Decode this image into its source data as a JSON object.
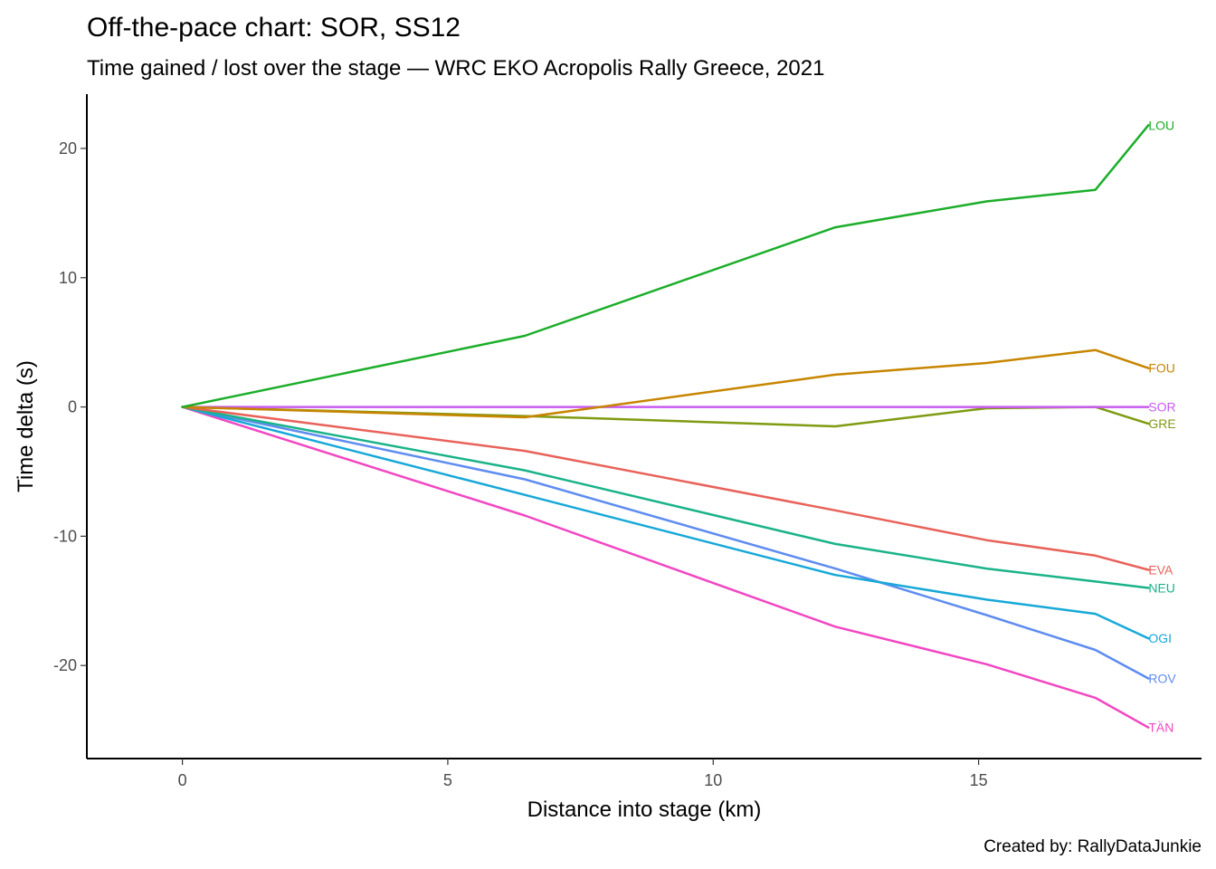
{
  "chart_data": {
    "type": "line",
    "title": "Off-the-pace chart: SOR, SS12",
    "subtitle": "Time gained / lost over the stage — WRC EKO Acropolis Rally Greece, 2021",
    "xlabel": "Distance into stage (km)",
    "ylabel": "Time delta (s)",
    "caption": "Created by: RallyDataJunkie",
    "xlim": [
      -1.8,
      19.2
    ],
    "ylim": [
      24.2,
      -27.2
    ],
    "y_reversed": true,
    "grid": false,
    "legend": "direct-labels",
    "x_ticks": [
      0,
      5,
      10,
      15
    ],
    "x_tick_labels": [
      "0",
      "5",
      "10",
      "15"
    ],
    "y_ticks": [
      -20,
      -10,
      0,
      10,
      20
    ],
    "y_tick_labels": [
      "-20",
      "-10",
      "0",
      "10",
      "20"
    ],
    "x": [
      0,
      6.45,
      12.3,
      15.15,
      17.2,
      18.2
    ],
    "series": [
      {
        "name": "TÄN",
        "color": "#F147C2",
        "values": [
          0,
          -8.4,
          -17.0,
          -19.9,
          -22.5,
          -24.8
        ]
      },
      {
        "name": "ROV",
        "color": "#5E8CF0",
        "values": [
          0,
          -5.6,
          -12.5,
          -16.1,
          -18.8,
          -21.0
        ]
      },
      {
        "name": "OGI",
        "color": "#17A8D8",
        "values": [
          0,
          -6.8,
          -13.0,
          -14.9,
          -16.0,
          -17.9
        ]
      },
      {
        "name": "NEU",
        "color": "#1AB389",
        "values": [
          0,
          -4.9,
          -10.6,
          -12.5,
          -13.5,
          -14.0
        ]
      },
      {
        "name": "EVA",
        "color": "#E8625A",
        "values": [
          0,
          -3.4,
          -8.0,
          -10.3,
          -11.5,
          -12.6
        ]
      },
      {
        "name": "GRE",
        "color": "#7F9B12",
        "values": [
          0,
          -0.7,
          -1.5,
          -0.1,
          0.0,
          -1.3
        ]
      },
      {
        "name": "SOR",
        "color": "#C959F0",
        "values": [
          0,
          0,
          0,
          0,
          0,
          0
        ]
      },
      {
        "name": "FOU",
        "color": "#C78500",
        "values": [
          0,
          -0.8,
          2.5,
          3.4,
          4.4,
          3.0
        ]
      },
      {
        "name": "LOU",
        "color": "#1CAE2A",
        "values": [
          0,
          5.5,
          13.9,
          15.9,
          16.8,
          21.8
        ]
      }
    ]
  }
}
